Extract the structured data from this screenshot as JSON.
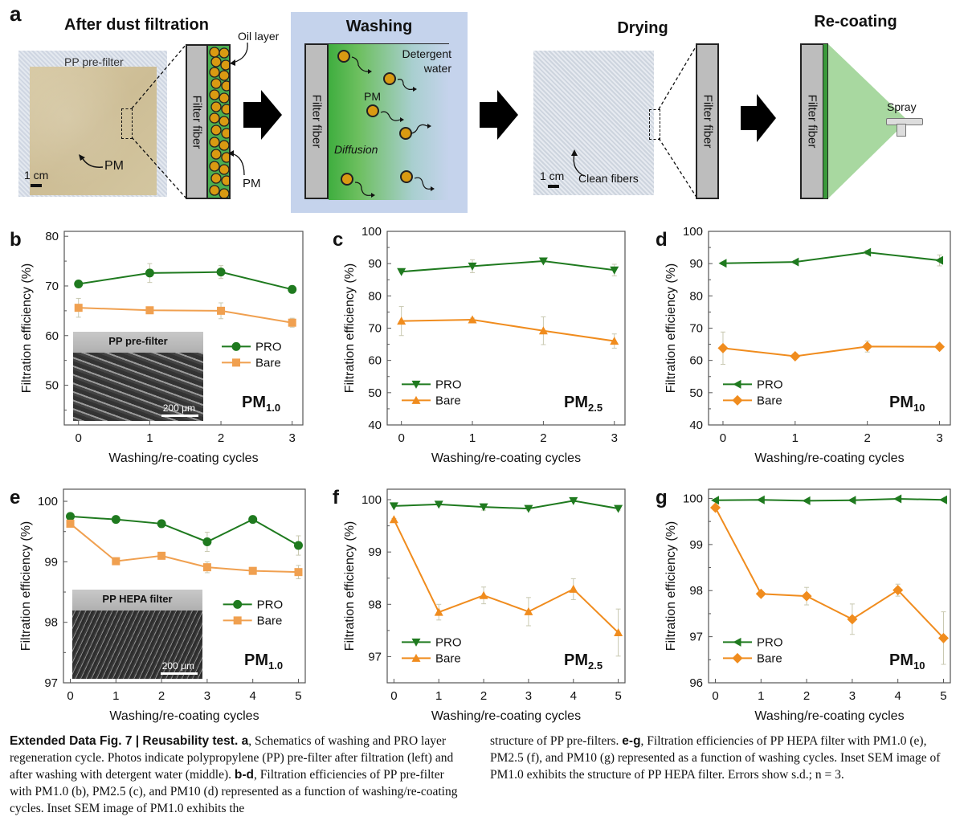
{
  "panel_a": {
    "letter": "a",
    "stage1": {
      "title": "After dust filtration",
      "photo_label": "PP pre-filter",
      "pm_label": "PM",
      "scale_label": "1 cm",
      "fiber_label": "Filter fiber",
      "oil_label": "Oil layer",
      "pm_callout": "PM"
    },
    "stage2": {
      "title": "Washing",
      "fiber_label": "Filter fiber",
      "detergent_label": "Detergent water",
      "pm_label": "PM",
      "diffusion_label": "Diffusion"
    },
    "stage3": {
      "title": "Drying",
      "scale_label": "1 cm",
      "clean_label": "Clean fibers",
      "fiber_label": "Filter fiber"
    },
    "stage4": {
      "title": "Re-coating",
      "fiber_label": "Filter fiber",
      "spray_label": "Spray"
    },
    "colors": {
      "pm": "#d99a12",
      "oil": "#4caf50",
      "wash_bg": "#c5d3ec",
      "fiber": "#bdbdbd"
    }
  },
  "chart_data": [
    {
      "id": "b",
      "letter": "b",
      "type": "line",
      "title": "PM1.0",
      "title_main": "PM",
      "title_sub": "1.0",
      "xlabel": "Washing/re-coating cycles",
      "ylabel": "Filtration efficiency (%)",
      "x": [
        0,
        1,
        2,
        3
      ],
      "xlim": [
        -0.2,
        3.15
      ],
      "ylim": [
        42,
        81
      ],
      "yticks": [
        50,
        60,
        70,
        80
      ],
      "yminor": [
        45,
        55,
        65,
        75
      ],
      "legend": "right-middle",
      "inset": {
        "label": "PP pre-filter",
        "scale": "200 μm",
        "style": "pre"
      },
      "series": [
        {
          "name": "PRO",
          "color": "#1f7a1f",
          "marker": "circle",
          "values": [
            70.4,
            72.6,
            72.8,
            69.3
          ],
          "err": [
            0.5,
            1.9,
            1.3,
            0.5
          ]
        },
        {
          "name": "Bare",
          "color": "#f0a050",
          "marker": "square",
          "values": [
            65.6,
            65.1,
            65.0,
            62.6
          ],
          "err": [
            1.9,
            0.5,
            1.6,
            0.9
          ]
        }
      ]
    },
    {
      "id": "c",
      "letter": "c",
      "type": "line",
      "title": "PM2.5",
      "title_main": "PM",
      "title_sub": "2.5",
      "xlabel": "Washing/re-coating cycles",
      "ylabel": "Filtration efficiency (%)",
      "x": [
        0,
        1,
        2,
        3
      ],
      "xlim": [
        -0.2,
        3.15
      ],
      "ylim": [
        40,
        100
      ],
      "yticks": [
        40,
        50,
        60,
        70,
        80,
        90,
        100
      ],
      "yminor": [
        45,
        55,
        65,
        75,
        85,
        95
      ],
      "legend": "bottom-left",
      "series": [
        {
          "name": "PRO",
          "color": "#1f7a1f",
          "marker": "triangle-down",
          "values": [
            87.5,
            89.2,
            90.8,
            88.0
          ],
          "err": [
            0.4,
            2.0,
            0.5,
            1.8
          ]
        },
        {
          "name": "Bare",
          "color": "#f08c1e",
          "marker": "triangle-up",
          "values": [
            72.2,
            72.6,
            69.2,
            66.0
          ],
          "err": [
            4.5,
            0.5,
            4.3,
            2.2
          ]
        }
      ]
    },
    {
      "id": "d",
      "letter": "d",
      "type": "line",
      "title": "PM10",
      "title_main": "PM",
      "title_sub": "10",
      "xlabel": "Washing/re-coating cycles",
      "ylabel": "Filtration efficiency (%)",
      "x": [
        0,
        1,
        2,
        3
      ],
      "xlim": [
        -0.2,
        3.15
      ],
      "ylim": [
        40,
        100
      ],
      "yticks": [
        40,
        50,
        60,
        70,
        80,
        90,
        100
      ],
      "yminor": [
        45,
        55,
        65,
        75,
        85,
        95
      ],
      "legend": "bottom-left",
      "series": [
        {
          "name": "PRO",
          "color": "#1f7a1f",
          "marker": "triangle-left",
          "values": [
            90.1,
            90.5,
            93.5,
            91.0
          ],
          "err": [
            0.4,
            0.4,
            0.6,
            1.7
          ]
        },
        {
          "name": "Bare",
          "color": "#f08c1e",
          "marker": "diamond",
          "values": [
            63.8,
            61.3,
            64.3,
            64.2
          ],
          "err": [
            5.0,
            0.8,
            1.7,
            0.6
          ]
        }
      ]
    },
    {
      "id": "e",
      "letter": "e",
      "type": "line",
      "title": "PM1.0",
      "title_main": "PM",
      "title_sub": "1.0",
      "xlabel": "Washing/re-coating cycles",
      "ylabel": "Filtration efficiency (%)",
      "x": [
        0,
        1,
        2,
        3,
        4,
        5
      ],
      "xlim": [
        -0.15,
        5.15
      ],
      "ylim": [
        97,
        100.2
      ],
      "yticks": [
        97,
        98,
        99,
        100
      ],
      "yminor": [
        97.5,
        98.5,
        99.5
      ],
      "legend": "right-middle",
      "inset": {
        "label": "PP HEPA filter",
        "scale": "200 μm",
        "style": "hepa"
      },
      "series": [
        {
          "name": "PRO",
          "color": "#1f7a1f",
          "marker": "circle",
          "values": [
            99.75,
            99.7,
            99.63,
            99.33,
            99.7,
            99.27
          ],
          "err": [
            0.02,
            0.02,
            0.03,
            0.16,
            0.02,
            0.16
          ]
        },
        {
          "name": "Bare",
          "color": "#f0a050",
          "marker": "square",
          "values": [
            99.63,
            99.01,
            99.1,
            98.91,
            98.85,
            98.83
          ],
          "err": [
            0.02,
            0.04,
            0.05,
            0.09,
            0.03,
            0.11
          ]
        }
      ]
    },
    {
      "id": "f",
      "letter": "f",
      "type": "line",
      "title": "PM2.5",
      "title_main": "PM",
      "title_sub": "2.5",
      "xlabel": "Washing/re-coating cycles",
      "ylabel": "Filtration efficiency (%)",
      "x": [
        0,
        1,
        2,
        3,
        4,
        5
      ],
      "xlim": [
        -0.15,
        5.15
      ],
      "ylim": [
        96.5,
        100.2
      ],
      "yticks": [
        97,
        98,
        99,
        100
      ],
      "yminor": [
        96.5,
        97.5,
        98.5,
        99.5
      ],
      "legend": "bottom-left",
      "series": [
        {
          "name": "PRO",
          "color": "#1f7a1f",
          "marker": "triangle-down",
          "values": [
            99.88,
            99.91,
            99.86,
            99.83,
            99.98,
            99.83
          ],
          "err": [
            0.02,
            0.03,
            0.06,
            0.03,
            0.02,
            0.03
          ]
        },
        {
          "name": "Bare",
          "color": "#f08c1e",
          "marker": "triangle-up",
          "values": [
            99.62,
            97.85,
            98.17,
            97.86,
            98.29,
            97.46
          ],
          "err": [
            0.02,
            0.15,
            0.16,
            0.27,
            0.2,
            0.45
          ]
        }
      ]
    },
    {
      "id": "g",
      "letter": "g",
      "type": "line",
      "title": "PM10",
      "title_main": "PM",
      "title_sub": "10",
      "xlabel": "Washing/re-coating cycles",
      "ylabel": "Filtration efficiency (%)",
      "x": [
        0,
        1,
        2,
        3,
        4,
        5
      ],
      "xlim": [
        -0.15,
        5.15
      ],
      "ylim": [
        96,
        100.2
      ],
      "yticks": [
        96,
        97,
        98,
        99,
        100
      ],
      "yminor": [
        96.5,
        97.5,
        98.5,
        99.5
      ],
      "legend": "bottom-left",
      "series": [
        {
          "name": "PRO",
          "color": "#1f7a1f",
          "marker": "triangle-left",
          "values": [
            99.96,
            99.97,
            99.95,
            99.96,
            99.99,
            99.97
          ],
          "err": [
            0.02,
            0.02,
            0.02,
            0.02,
            0.02,
            0.02
          ]
        },
        {
          "name": "Bare",
          "color": "#f08c1e",
          "marker": "diamond",
          "values": [
            99.8,
            97.93,
            97.88,
            97.38,
            98.01,
            96.97
          ],
          "err": [
            0.02,
            0.05,
            0.19,
            0.33,
            0.13,
            0.57
          ]
        }
      ]
    }
  ],
  "caption": {
    "left": [
      {
        "b": "Extended Data Fig. 7 | Reusability test. a",
        "t": ", Schematics of washing and PRO layer regeneration cycle. Photos indicate polypropylene (PP) pre-filter after filtration (left) and after washing with detergent water (middle). "
      },
      {
        "b": "b-d",
        "t": ", Filtration efficiencies of PP pre-filter with PM1.0 (b), PM2.5 (c), and PM10 (d) represented as a function of washing/re-coating cycles. Inset SEM image of PM1.0 exhibits the"
      }
    ],
    "right": [
      {
        "b": "",
        "t": "structure of PP pre-filters. "
      },
      {
        "b": "e-g",
        "t": ", Filtration efficiencies of PP HEPA filter with PM1.0 (e), PM2.5 (f), and PM10 (g) represented as a function of washing cycles. Inset SEM image of PM1.0 exhibits the structure of PP HEPA filter. Errors show s.d.; n = 3."
      }
    ]
  }
}
